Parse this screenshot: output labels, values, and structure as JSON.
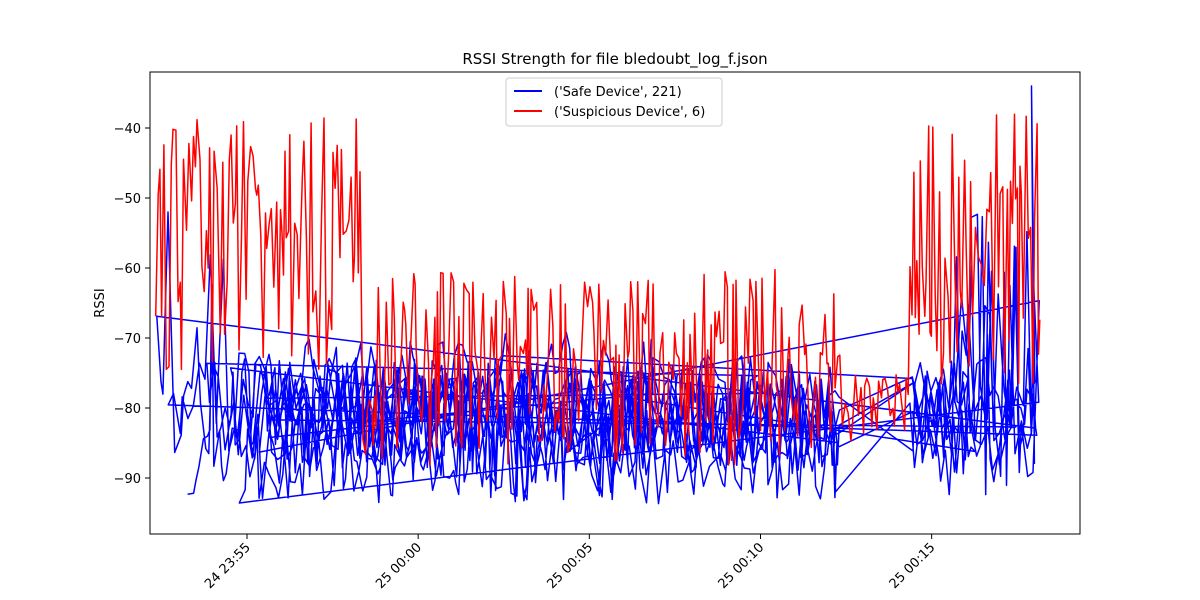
{
  "chart_data": {
    "type": "line",
    "title": "RSSI Strength for file bledoubt_log_f.json",
    "xlabel": "",
    "ylabel": "RSSI",
    "x_ticks": [
      "24 23:55",
      "25 00:00",
      "25 00:05",
      "25 00:10",
      "25 00:15"
    ],
    "y_ticks": [
      -40,
      -50,
      -60,
      -70,
      -80,
      -90
    ],
    "xlim": [
      "24 23:52:10",
      "25 00:19:20"
    ],
    "ylim": [
      -98,
      -32
    ],
    "grid": false,
    "legend_position": "top-center",
    "series": [
      {
        "name": "('Safe Device', 221)",
        "color": "#0000ff",
        "x_start": "24 23:52:20",
        "x_end": "25 00:18:10",
        "value_range": [
          -95,
          -34
        ],
        "typical_range": [
          -92,
          -76
        ]
      },
      {
        "name": "('Suspicious Device', 6)",
        "color": "#ff0000",
        "x_start": "24 23:52:20",
        "x_end": "25 00:18:10",
        "value_range": [
          -91,
          -36
        ],
        "typical_range": [
          -85,
          -60
        ]
      }
    ]
  }
}
